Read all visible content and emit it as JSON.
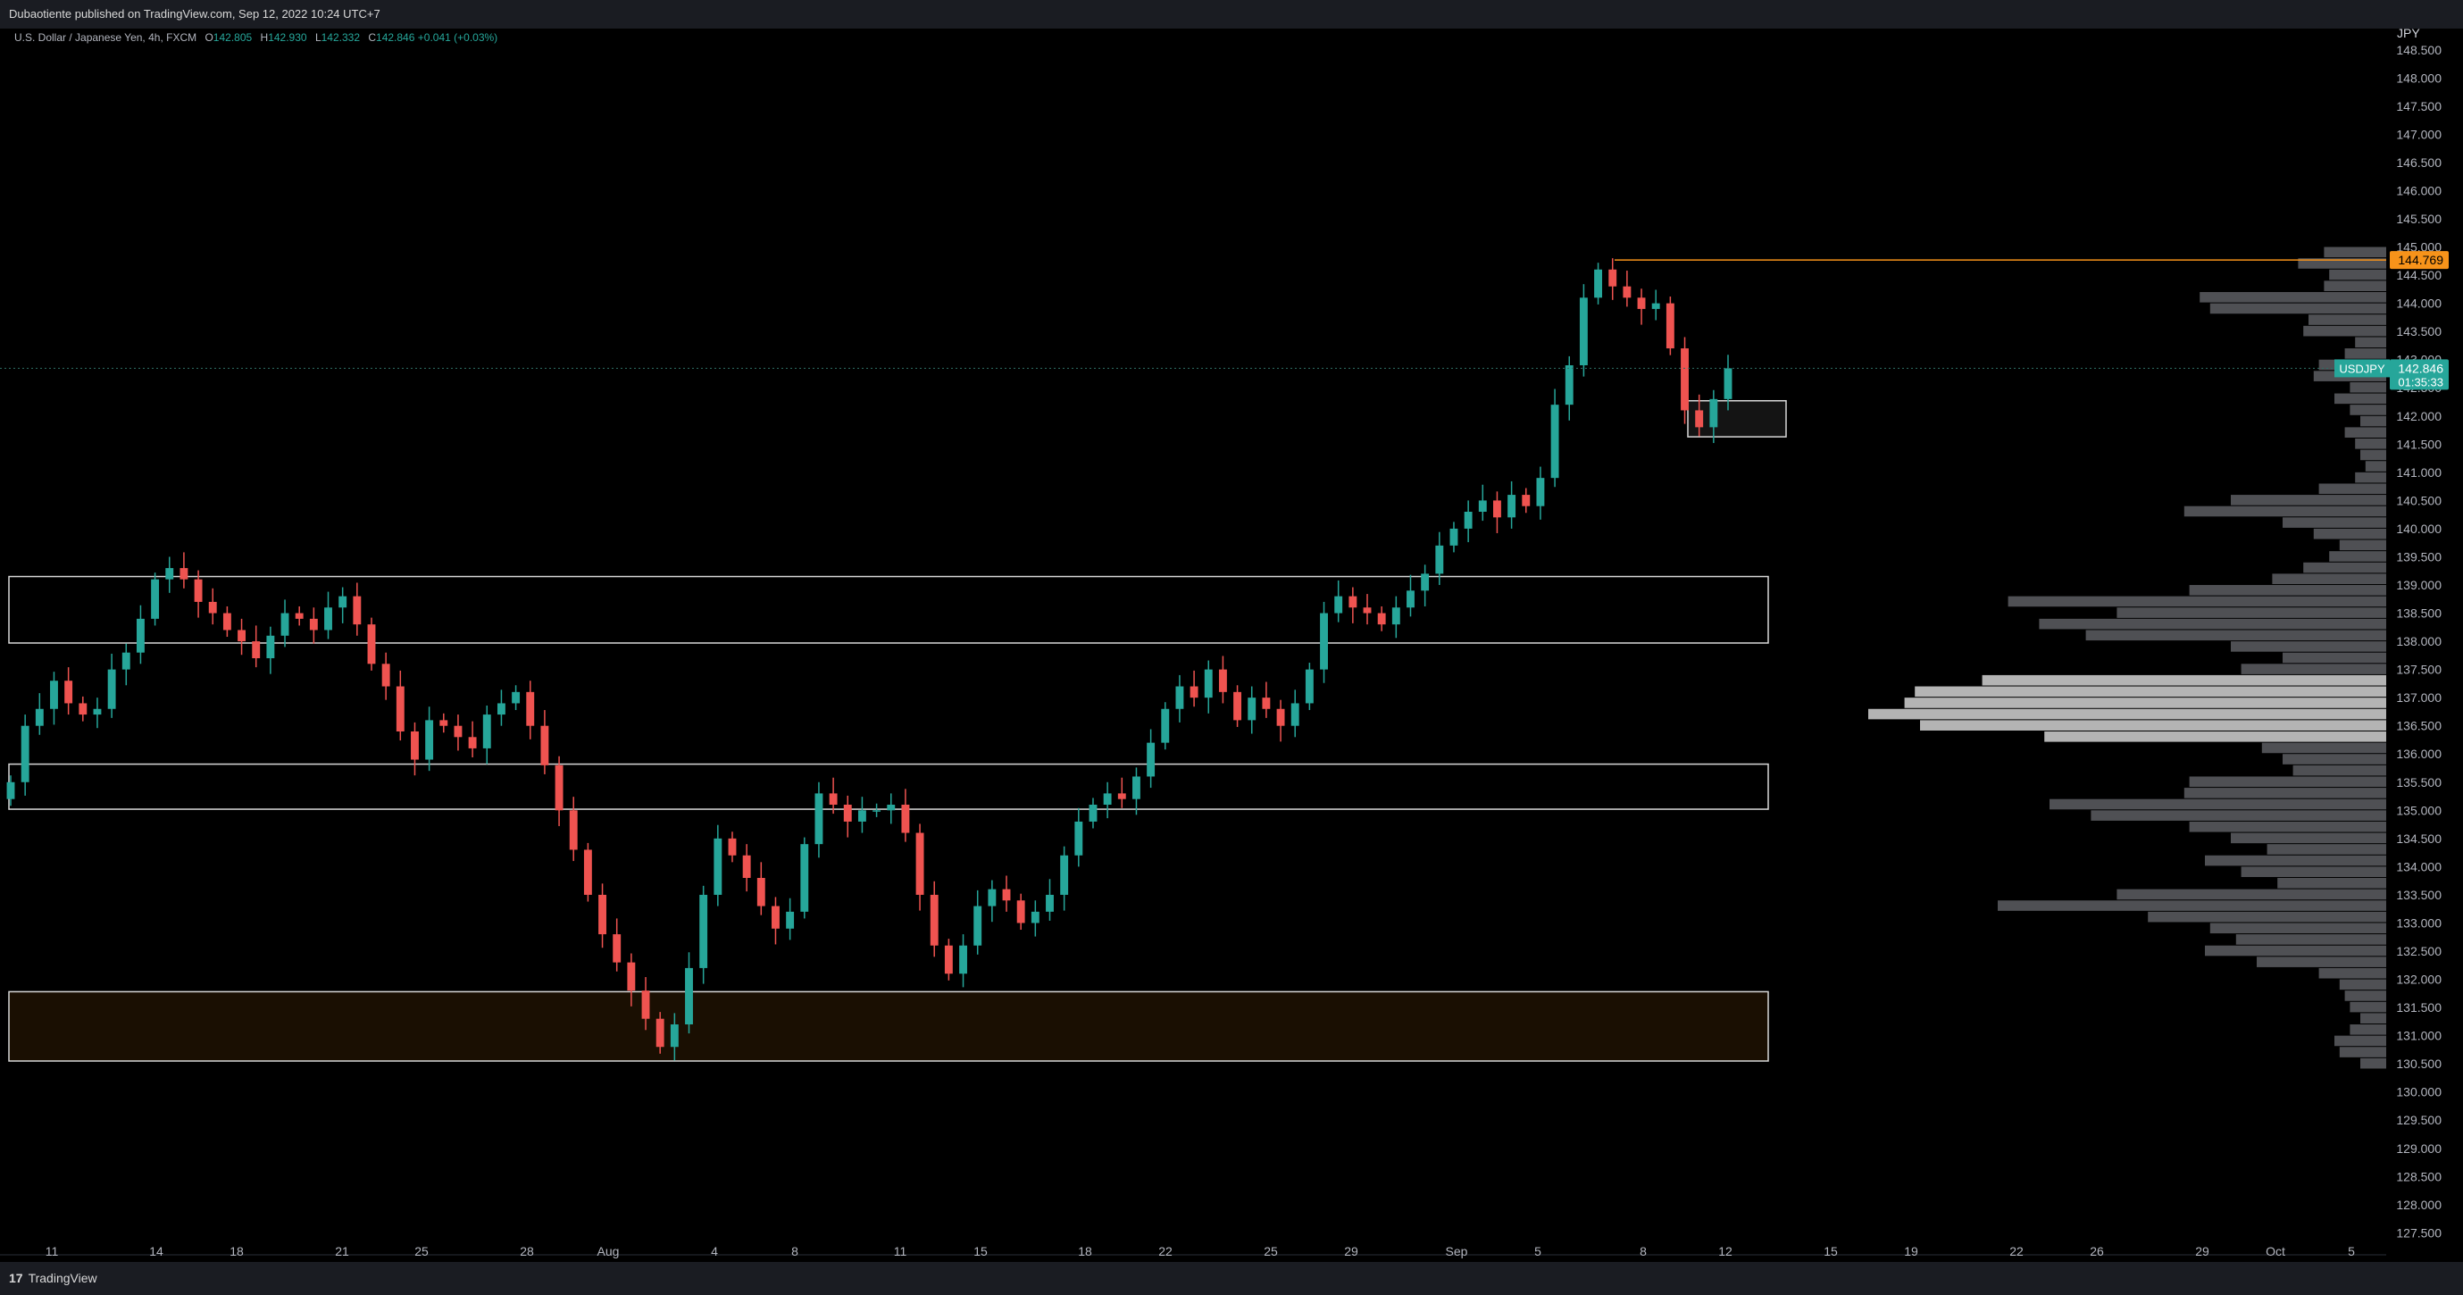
{
  "header": {
    "published": "Dubaotiente published on TradingView.com, Sep 12, 2022 10:24 UTC+7"
  },
  "legend": {
    "title": "U.S. Dollar / Japanese Yen, 4h, FXCM",
    "o_label": "O",
    "o": "142.805",
    "h_label": "H",
    "h": "142.930",
    "l_label": "L",
    "l": "142.332",
    "c_label": "C",
    "c": "142.846",
    "change": "+0.041 (+0.03%)"
  },
  "footer": {
    "brand": "TradingView"
  },
  "colors": {
    "up": "#26a69a",
    "down": "#ef5350",
    "high_line": "#f7931a",
    "price_tag": "#26a69a",
    "zone_highlight": "#1a0f02",
    "profile": "#5d5e63",
    "profile_value_area": "#c8c8c8"
  },
  "chart_data": {
    "type": "candlestick",
    "symbol_label": "USDJPY",
    "currency": "JPY",
    "ylim": [
      127.3,
      148.75
    ],
    "y_ticks": [
      "148.500",
      "148.000",
      "147.500",
      "147.000",
      "146.500",
      "146.000",
      "145.500",
      "145.000",
      "144.500",
      "144.000",
      "143.500",
      "143.000",
      "142.500",
      "142.000",
      "141.500",
      "141.000",
      "140.500",
      "140.000",
      "139.500",
      "139.000",
      "138.500",
      "138.000",
      "137.500",
      "137.000",
      "136.500",
      "136.000",
      "135.500",
      "135.000",
      "134.500",
      "134.000",
      "133.500",
      "133.000",
      "132.500",
      "132.000",
      "131.500",
      "131.000",
      "130.500",
      "130.000",
      "129.500",
      "129.000",
      "128.500",
      "128.000",
      "127.500"
    ],
    "x_ticks": [
      "11",
      "14",
      "18",
      "21",
      "25",
      "28",
      "Aug",
      "4",
      "8",
      "11",
      "15",
      "18",
      "22",
      "25",
      "29",
      "Sep",
      "5",
      "8",
      "12",
      "15",
      "19",
      "22",
      "26",
      "29",
      "Oct",
      "5"
    ],
    "last_price": "142.846",
    "countdown": "01:35:33",
    "high_price": "144.769",
    "zones": [
      {
        "top": 139.15,
        "bottom": 137.97,
        "fill": false
      },
      {
        "top": 135.82,
        "bottom": 135.02,
        "fill": false
      },
      {
        "top": 131.78,
        "bottom": 130.55,
        "fill": true
      },
      {
        "top": 142.27,
        "bottom": 141.63,
        "fill": false,
        "small": true
      }
    ],
    "closes": [
      135.5,
      136.5,
      136.8,
      137.3,
      136.9,
      136.7,
      136.8,
      137.5,
      137.8,
      138.4,
      139.1,
      139.3,
      139.1,
      138.7,
      138.5,
      138.2,
      138.0,
      137.7,
      138.1,
      138.5,
      138.4,
      138.2,
      138.6,
      138.8,
      138.3,
      137.6,
      137.2,
      136.4,
      135.9,
      136.6,
      136.5,
      136.3,
      136.1,
      136.7,
      136.9,
      137.1,
      136.5,
      135.8,
      135.0,
      134.3,
      133.5,
      132.8,
      132.3,
      131.8,
      131.3,
      130.8,
      131.2,
      132.2,
      133.5,
      134.5,
      134.2,
      133.8,
      133.3,
      132.9,
      133.2,
      134.4,
      135.3,
      135.1,
      134.8,
      135.0,
      135.0,
      135.1,
      134.6,
      133.5,
      132.6,
      132.1,
      132.6,
      133.3,
      133.6,
      133.4,
      133.0,
      133.2,
      133.5,
      134.2,
      134.8,
      135.1,
      135.3,
      135.2,
      135.6,
      136.2,
      136.8,
      137.2,
      137.0,
      137.5,
      137.1,
      136.6,
      137.0,
      136.8,
      136.5,
      136.9,
      137.5,
      138.5,
      138.8,
      138.6,
      138.5,
      138.3,
      138.6,
      138.9,
      139.2,
      139.7,
      140.0,
      140.3,
      140.5,
      140.2,
      140.6,
      140.4,
      140.9,
      142.2,
      142.9,
      144.1,
      144.6,
      144.3,
      144.1,
      143.9,
      144.0,
      143.2,
      142.1,
      141.8,
      142.3,
      142.846
    ],
    "volume_profile_bins": [
      {
        "price": 144.9,
        "size": 0.12
      },
      {
        "price": 144.7,
        "size": 0.17
      },
      {
        "price": 144.5,
        "size": 0.11
      },
      {
        "price": 144.3,
        "size": 0.12
      },
      {
        "price": 144.1,
        "size": 0.36
      },
      {
        "price": 143.9,
        "size": 0.34
      },
      {
        "price": 143.7,
        "size": 0.15
      },
      {
        "price": 143.5,
        "size": 0.16
      },
      {
        "price": 143.3,
        "size": 0.06
      },
      {
        "price": 143.1,
        "size": 0.08
      },
      {
        "price": 142.9,
        "size": 0.13
      },
      {
        "price": 142.7,
        "size": 0.14
      },
      {
        "price": 142.5,
        "size": 0.07
      },
      {
        "price": 142.3,
        "size": 0.1
      },
      {
        "price": 142.1,
        "size": 0.07
      },
      {
        "price": 141.9,
        "size": 0.05
      },
      {
        "price": 141.7,
        "size": 0.08
      },
      {
        "price": 141.5,
        "size": 0.06
      },
      {
        "price": 141.3,
        "size": 0.05
      },
      {
        "price": 141.1,
        "size": 0.04
      },
      {
        "price": 140.9,
        "size": 0.06
      },
      {
        "price": 140.7,
        "size": 0.13
      },
      {
        "price": 140.5,
        "size": 0.3
      },
      {
        "price": 140.3,
        "size": 0.39
      },
      {
        "price": 140.1,
        "size": 0.2
      },
      {
        "price": 139.9,
        "size": 0.14
      },
      {
        "price": 139.7,
        "size": 0.09
      },
      {
        "price": 139.5,
        "size": 0.11
      },
      {
        "price": 139.3,
        "size": 0.16
      },
      {
        "price": 139.1,
        "size": 0.22
      },
      {
        "price": 138.9,
        "size": 0.38
      },
      {
        "price": 138.7,
        "size": 0.73
      },
      {
        "price": 138.5,
        "size": 0.52
      },
      {
        "price": 138.3,
        "size": 0.67
      },
      {
        "price": 138.1,
        "size": 0.58
      },
      {
        "price": 137.9,
        "size": 0.3
      },
      {
        "price": 137.7,
        "size": 0.2
      },
      {
        "price": 137.5,
        "size": 0.28
      },
      {
        "price": 137.3,
        "size": 0.78
      },
      {
        "price": 137.1,
        "size": 0.91
      },
      {
        "price": 136.9,
        "size": 0.93
      },
      {
        "price": 136.7,
        "size": 1.0
      },
      {
        "price": 136.5,
        "size": 0.9
      },
      {
        "price": 136.3,
        "size": 0.66
      },
      {
        "price": 136.1,
        "size": 0.24
      },
      {
        "price": 135.9,
        "size": 0.2
      },
      {
        "price": 135.7,
        "size": 0.18
      },
      {
        "price": 135.5,
        "size": 0.38
      },
      {
        "price": 135.3,
        "size": 0.39
      },
      {
        "price": 135.1,
        "size": 0.65
      },
      {
        "price": 134.9,
        "size": 0.57
      },
      {
        "price": 134.7,
        "size": 0.38
      },
      {
        "price": 134.5,
        "size": 0.3
      },
      {
        "price": 134.3,
        "size": 0.23
      },
      {
        "price": 134.1,
        "size": 0.35
      },
      {
        "price": 133.9,
        "size": 0.28
      },
      {
        "price": 133.7,
        "size": 0.21
      },
      {
        "price": 133.5,
        "size": 0.52
      },
      {
        "price": 133.3,
        "size": 0.75
      },
      {
        "price": 133.1,
        "size": 0.46
      },
      {
        "price": 132.9,
        "size": 0.34
      },
      {
        "price": 132.7,
        "size": 0.29
      },
      {
        "price": 132.5,
        "size": 0.35
      },
      {
        "price": 132.3,
        "size": 0.25
      },
      {
        "price": 132.1,
        "size": 0.13
      },
      {
        "price": 131.9,
        "size": 0.09
      },
      {
        "price": 131.7,
        "size": 0.08
      },
      {
        "price": 131.5,
        "size": 0.07
      },
      {
        "price": 131.3,
        "size": 0.05
      },
      {
        "price": 131.1,
        "size": 0.07
      },
      {
        "price": 130.9,
        "size": 0.1
      },
      {
        "price": 130.7,
        "size": 0.09
      },
      {
        "price": 130.5,
        "size": 0.05
      }
    ],
    "value_area": [
      136.2,
      137.35
    ]
  }
}
